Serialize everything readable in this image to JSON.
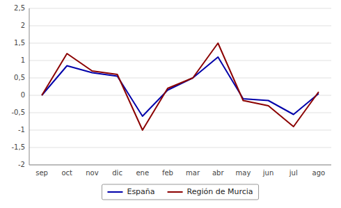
{
  "chart_data": {
    "type": "line",
    "categories": [
      "sep",
      "oct",
      "nov",
      "dic",
      "ene",
      "feb",
      "mar",
      "abr",
      "may",
      "jun",
      "jul",
      "ago"
    ],
    "series": [
      {
        "name": "España",
        "color": "#0000aa",
        "values": [
          0.0,
          0.85,
          0.65,
          0.55,
          -0.6,
          0.15,
          0.5,
          1.1,
          -0.1,
          -0.15,
          -0.55,
          0.05
        ]
      },
      {
        "name": "Región de Murcia",
        "color": "#8b0000",
        "values": [
          0.0,
          1.2,
          0.7,
          0.6,
          -1.0,
          0.2,
          0.5,
          1.5,
          -0.15,
          -0.3,
          -0.9,
          0.1
        ]
      }
    ],
    "ylim": [
      -2.0,
      2.5
    ],
    "yticks": [
      -2,
      {
        "value": -1.5,
        "label": "-1,5"
      },
      -1,
      {
        "value": -0.5,
        "label": "-0,5"
      },
      0,
      {
        "value": 0.5,
        "label": "0,5"
      },
      1,
      {
        "value": 1.5,
        "label": "1,5"
      },
      2,
      {
        "value": 2.5,
        "label": "2,5"
      }
    ],
    "grid": true,
    "legend": "bottom"
  }
}
